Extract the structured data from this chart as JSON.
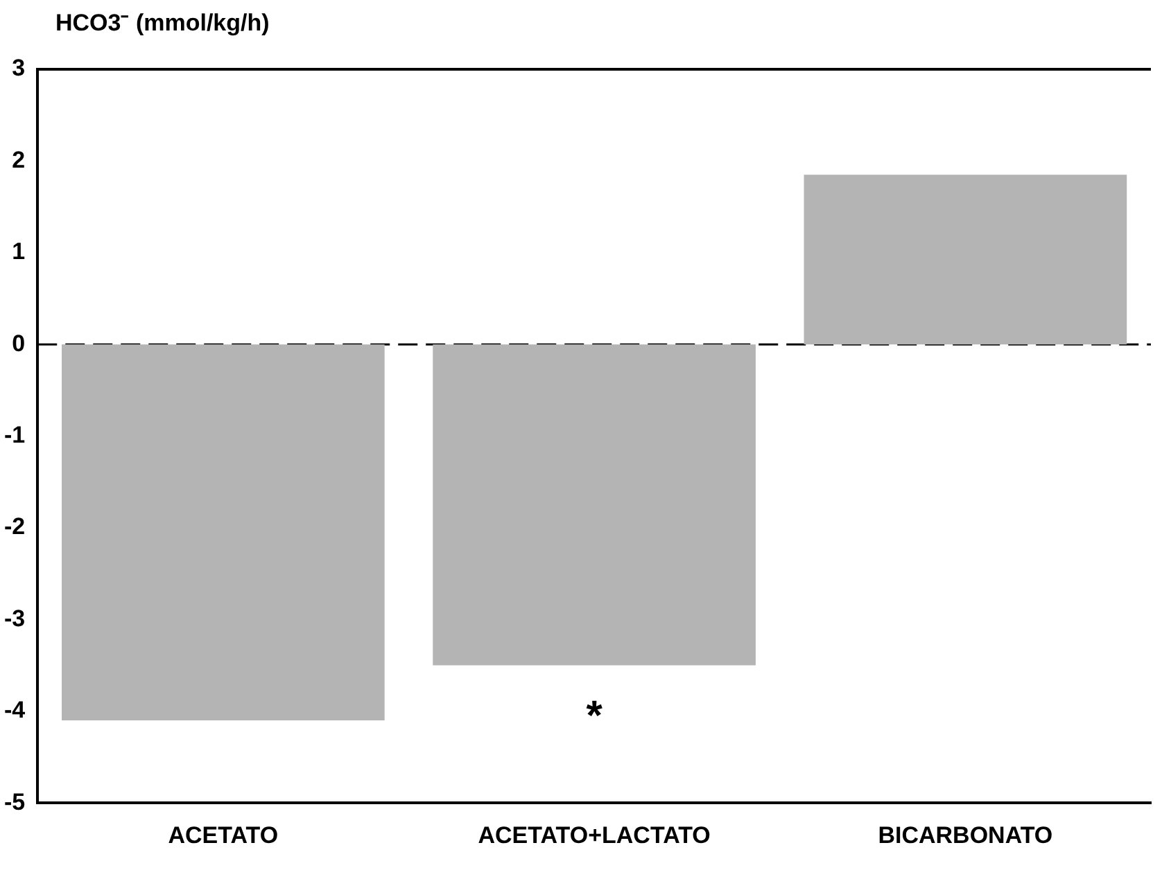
{
  "chart_data": {
    "type": "bar",
    "ylabel": "HCO3⁻ (mmol/kg/h)",
    "categories": [
      "ACETATO",
      "ACETATO+LACTATO",
      "BICARBONATO"
    ],
    "values": [
      -4.1,
      -3.5,
      1.85
    ],
    "color": "#b4b4b4",
    "ylim": [
      -5,
      3
    ],
    "yticks": [
      -5,
      -4,
      -3,
      -2,
      -1,
      0,
      1,
      2,
      3
    ],
    "grid": false,
    "legend": false,
    "ref_lines": [
      {
        "axis": "y",
        "value": 0,
        "line_style": "dashed",
        "color": "#000000"
      }
    ],
    "annotations": [
      "*"
    ]
  }
}
